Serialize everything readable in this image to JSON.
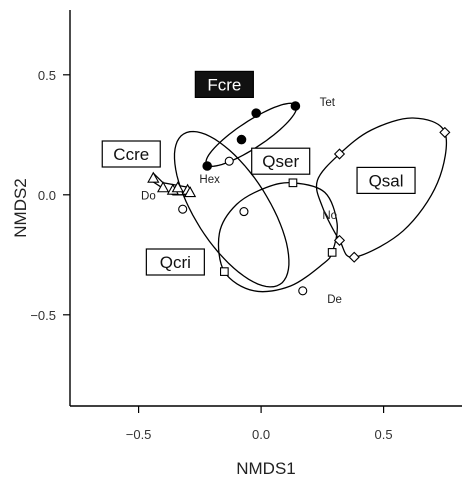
{
  "chart_data": {
    "type": "scatter",
    "xlabel": "NMDS1",
    "ylabel": "NMDS2",
    "xlim": [
      -0.78,
      0.82
    ],
    "ylim": [
      -0.88,
      0.77
    ],
    "xticks": [
      -0.5,
      0.0,
      0.5
    ],
    "yticks": [
      -0.5,
      0.0,
      0.5
    ],
    "xtick_labels": [
      "−0.5",
      "0.0",
      "0.5"
    ],
    "ytick_labels": [
      "−0.5",
      "0.0",
      "0.5"
    ],
    "groups": [
      {
        "name": "Fcre",
        "style": "dark-box",
        "marker": "filled-circle",
        "points": [
          [
            -0.22,
            0.12
          ],
          [
            -0.08,
            0.23
          ],
          [
            -0.02,
            0.34
          ],
          [
            0.14,
            0.37
          ]
        ],
        "ellipse": {
          "cx": -0.04,
          "cy": 0.25,
          "rx": 0.22,
          "ry": 0.055,
          "angle_deg": 34
        },
        "label_at": [
          -0.15,
          0.46
        ]
      },
      {
        "name": "Ccre",
        "style": "box",
        "marker": "triangle",
        "points": [
          [
            -0.44,
            0.07
          ],
          [
            -0.4,
            0.03
          ],
          [
            -0.36,
            0.02
          ],
          [
            -0.34,
            0.03
          ],
          [
            -0.3,
            0.02
          ],
          [
            -0.29,
            0.01
          ]
        ],
        "label_at": [
          -0.53,
          0.17
        ]
      },
      {
        "name": "Qcri",
        "style": "box",
        "marker": "hollow-circle",
        "points": [
          [
            -0.32,
            -0.06
          ],
          [
            -0.13,
            0.14
          ],
          [
            -0.07,
            -0.07
          ],
          [
            0.17,
            -0.4
          ]
        ],
        "ellipse": {
          "cx": -0.12,
          "cy": -0.06,
          "rx": 0.37,
          "ry": 0.15,
          "angle_deg": -58
        },
        "label_at": [
          -0.35,
          -0.28
        ]
      },
      {
        "name": "Qser",
        "style": "box",
        "marker": "square",
        "points": [
          [
            0.13,
            0.05
          ],
          [
            -0.15,
            -0.32
          ],
          [
            0.29,
            -0.24
          ]
        ],
        "label_at": [
          0.08,
          0.14
        ]
      },
      {
        "name": "Qsal",
        "style": "box",
        "marker": "diamond",
        "points": [
          [
            0.32,
            0.17
          ],
          [
            0.75,
            0.26
          ],
          [
            0.32,
            -0.19
          ],
          [
            0.38,
            -0.26
          ]
        ],
        "label_at": [
          0.51,
          0.06
        ]
      }
    ],
    "point_labels": [
      {
        "text": "Tet",
        "at": [
          0.27,
          0.37
        ]
      },
      {
        "text": "Hex",
        "at": [
          -0.21,
          0.05
        ]
      },
      {
        "text": "Do",
        "at": [
          -0.46,
          -0.02
        ]
      },
      {
        "text": "No",
        "at": [
          0.28,
          -0.1
        ]
      },
      {
        "text": "De",
        "at": [
          0.3,
          -0.45
        ]
      }
    ]
  }
}
